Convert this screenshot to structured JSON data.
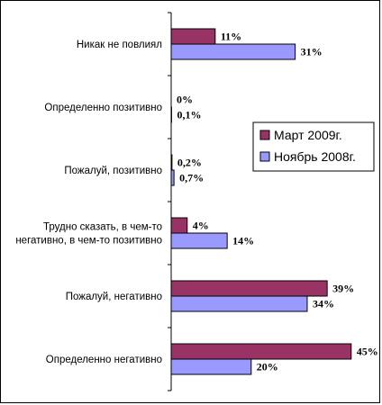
{
  "chart_data": {
    "type": "bar",
    "orientation": "horizontal",
    "categories": [
      [
        "Никак не повлиял"
      ],
      [
        "Определенно позитивно"
      ],
      [
        "Пожалуй, позитивно"
      ],
      [
        "Трудно сказать, в чем-то",
        "негативно, в чем-то позитивно"
      ],
      [
        "Пожалуй, негативно"
      ],
      [
        "Определенно негативно"
      ]
    ],
    "series": [
      {
        "name": "Март 2009г.",
        "color": "#993366",
        "values": [
          11,
          0,
          0.2,
          4,
          39,
          45
        ],
        "labels": [
          "11%",
          "0%",
          "0,2%",
          "4%",
          "39%",
          "45%"
        ]
      },
      {
        "name": "Ноябрь 2008г.",
        "color": "#9999ff",
        "values": [
          31,
          0.1,
          0.7,
          14,
          34,
          20
        ],
        "labels": [
          "31%",
          "0,1%",
          "0,7%",
          "14%",
          "34%",
          "20%"
        ]
      }
    ],
    "xlim": [
      0,
      50
    ],
    "grid": false,
    "legend": "right"
  }
}
